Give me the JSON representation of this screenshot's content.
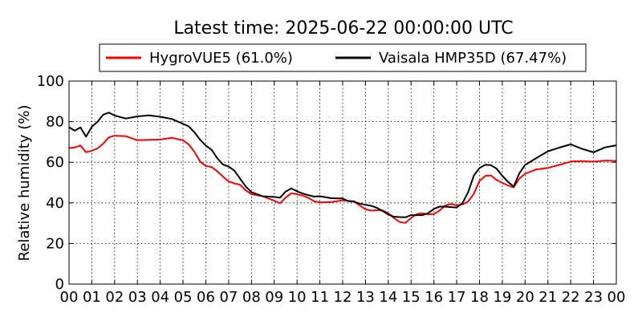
{
  "chart_data": {
    "type": "line",
    "title": "Latest time: 2025-06-22 00:00:00 UTC",
    "xlabel": "",
    "ylabel": "Relative humidity (%)",
    "xlim": [
      0,
      24
    ],
    "ylim": [
      0,
      100
    ],
    "grid": true,
    "legend_position": "top",
    "x_ticks": [
      0,
      1,
      2,
      3,
      4,
      5,
      6,
      7,
      8,
      9,
      10,
      11,
      12,
      13,
      14,
      15,
      16,
      17,
      18,
      19,
      20,
      21,
      22,
      23,
      24
    ],
    "x_tick_labels": [
      "00",
      "01",
      "02",
      "03",
      "04",
      "05",
      "06",
      "07",
      "08",
      "09",
      "10",
      "11",
      "12",
      "13",
      "14",
      "15",
      "16",
      "17",
      "18",
      "19",
      "20",
      "21",
      "22",
      "23",
      "00"
    ],
    "y_ticks": [
      0,
      20,
      40,
      60,
      80,
      100
    ],
    "y_tick_labels": [
      "0",
      "20",
      "40",
      "60",
      "80",
      "100"
    ],
    "series": [
      {
        "name": "HygroVUE5 (61.0%)",
        "color": "#ff0000",
        "x": [
          0,
          0.25,
          0.5,
          0.75,
          1,
          1.25,
          1.5,
          1.75,
          2,
          2.5,
          3,
          3.5,
          4,
          4.5,
          5,
          5.25,
          5.5,
          5.75,
          6,
          6.25,
          6.5,
          6.75,
          7,
          7.25,
          7.5,
          7.75,
          8,
          8.5,
          9,
          9.25,
          9.5,
          9.75,
          10,
          10.25,
          10.5,
          10.75,
          11,
          11.5,
          12,
          12.25,
          12.5,
          12.75,
          13,
          13.25,
          13.5,
          13.75,
          14,
          14.25,
          14.5,
          14.75,
          15,
          15.25,
          15.5,
          15.75,
          16,
          16.25,
          16.5,
          16.75,
          17,
          17.25,
          17.5,
          17.75,
          18,
          18.25,
          18.5,
          18.75,
          19,
          19.25,
          19.5,
          19.75,
          20,
          20.5,
          21,
          21.5,
          22,
          22.5,
          23,
          23.5,
          24
        ],
        "values": [
          67,
          66,
          67,
          65,
          67,
          68,
          69,
          71,
          72,
          73,
          72,
          72,
          71,
          71,
          70,
          69,
          66,
          61,
          58,
          57,
          55,
          53,
          51,
          50,
          49,
          46,
          44,
          43,
          41,
          40,
          43,
          45,
          44,
          43,
          42,
          41,
          41,
          41,
          41,
          40,
          40,
          39,
          38,
          37,
          36,
          35,
          34,
          33,
          32,
          31,
          32,
          33,
          34,
          35,
          36,
          37,
          38,
          38,
          38,
          40,
          42,
          45,
          50,
          52,
          53,
          52,
          51,
          49,
          47,
          51,
          54,
          57,
          58,
          59,
          60,
          60,
          60,
          61,
          61
        ]
      },
      {
        "name": "Vaisala HMP35D (67.47%)",
        "color": "#000000",
        "x": [
          0,
          0.25,
          0.5,
          0.75,
          1,
          1.25,
          1.5,
          1.75,
          2,
          2.5,
          3,
          3.5,
          4,
          4.5,
          5,
          5.25,
          5.5,
          5.75,
          6,
          6.25,
          6.5,
          6.75,
          7,
          7.25,
          7.5,
          7.75,
          8,
          8.5,
          9,
          9.25,
          9.5,
          9.75,
          10,
          10.25,
          10.5,
          10.75,
          11,
          11.5,
          12,
          12.25,
          12.5,
          12.75,
          13,
          13.25,
          13.5,
          13.75,
          14,
          14.25,
          14.5,
          14.75,
          15,
          15.25,
          15.5,
          15.75,
          16,
          16.25,
          16.5,
          16.75,
          17,
          17.25,
          17.5,
          17.75,
          18,
          18.25,
          18.5,
          18.75,
          19,
          19.25,
          19.5,
          19.75,
          20,
          20.5,
          21,
          21.5,
          22,
          22.5,
          23,
          23.5,
          24
        ],
        "values": [
          76,
          75,
          78,
          74,
          78,
          79,
          82,
          84,
          84,
          83,
          83,
          82,
          81,
          81,
          80,
          79,
          75,
          70,
          67,
          66,
          63,
          60,
          58,
          55,
          51,
          48,
          46,
          44,
          43,
          42,
          45,
          47,
          46,
          45,
          44,
          43,
          43,
          42,
          42,
          41,
          41,
          40,
          39,
          38,
          37,
          36,
          35,
          34,
          33,
          32,
          33,
          34,
          35,
          36,
          37,
          37,
          37,
          38,
          39,
          41,
          45,
          52,
          56,
          59,
          60,
          58,
          53,
          49,
          47,
          55,
          60,
          63,
          65,
          66,
          68,
          67,
          66,
          68,
          68
        ]
      }
    ]
  }
}
